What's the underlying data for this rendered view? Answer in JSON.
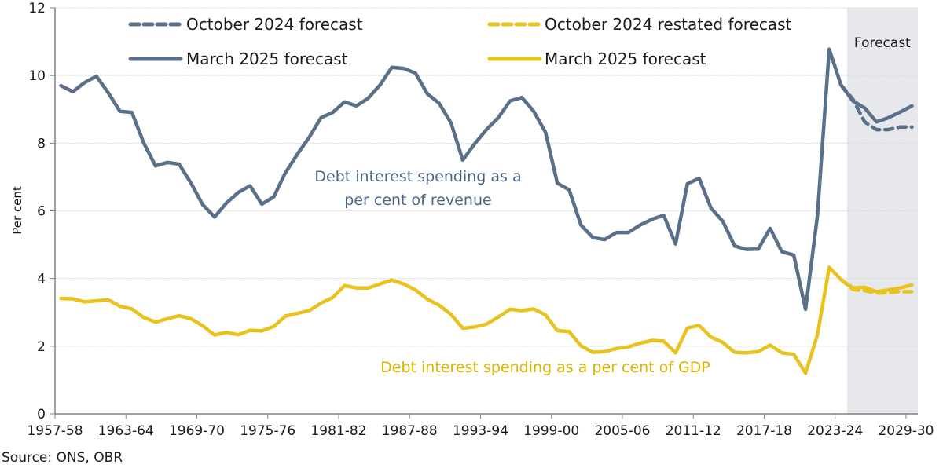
{
  "chart_data": {
    "type": "line",
    "title": "",
    "xlabel": "",
    "ylabel": "Per cent",
    "ylim": [
      0,
      12
    ],
    "yticks": [
      0,
      2,
      4,
      6,
      8,
      10,
      12
    ],
    "grid": true,
    "legend_position": "top",
    "source": "Source: ONS, OBR",
    "forecast_region": {
      "label": "Forecast",
      "start": "2024-25",
      "end": "2029-30"
    },
    "x_tick_labels": [
      "1957-58",
      "1963-64",
      "1969-70",
      "1975-76",
      "1981-82",
      "1987-88",
      "1993-94",
      "1999-00",
      "2005-06",
      "2011-12",
      "2017-18",
      "2023-24",
      "2029-30"
    ],
    "categories": [
      "1957-58",
      "1958-59",
      "1959-60",
      "1960-61",
      "1961-62",
      "1962-63",
      "1963-64",
      "1964-65",
      "1965-66",
      "1966-67",
      "1967-68",
      "1968-69",
      "1969-70",
      "1970-71",
      "1971-72",
      "1972-73",
      "1973-74",
      "1974-75",
      "1975-76",
      "1976-77",
      "1977-78",
      "1978-79",
      "1979-80",
      "1980-81",
      "1981-82",
      "1982-83",
      "1983-84",
      "1984-85",
      "1985-86",
      "1986-87",
      "1987-88",
      "1988-89",
      "1989-90",
      "1990-91",
      "1991-92",
      "1992-93",
      "1993-94",
      "1994-95",
      "1995-96",
      "1996-97",
      "1997-98",
      "1998-99",
      "1999-00",
      "2000-01",
      "2001-02",
      "2002-03",
      "2003-04",
      "2004-05",
      "2005-06",
      "2006-07",
      "2007-08",
      "2008-09",
      "2009-10",
      "2010-11",
      "2011-12",
      "2012-13",
      "2013-14",
      "2014-15",
      "2015-16",
      "2016-17",
      "2017-18",
      "2018-19",
      "2019-20",
      "2020-21",
      "2021-22",
      "2022-23",
      "2023-24",
      "2024-25",
      "2025-26",
      "2026-27",
      "2027-28",
      "2028-29",
      "2029-30"
    ],
    "annotations": [
      {
        "text_lines": [
          "Debt interest spending as a",
          "per cent of revenue"
        ],
        "color": "#4d6584"
      },
      {
        "text_lines": [
          "Debt interest spending as a per cent of GDP"
        ],
        "color": "#d9b400"
      }
    ],
    "series": [
      {
        "name": "October 2024 forecast",
        "measure": "revenue",
        "style": "dashed",
        "color": "#5a7089",
        "start_index": 66,
        "values": [
          9.72,
          9.3,
          8.63,
          8.4,
          8.4,
          8.48,
          8.48
        ]
      },
      {
        "name": "March 2025 forecast",
        "measure": "revenue",
        "style": "solid",
        "color": "#5a7089",
        "start_index": 0,
        "values": [
          9.7,
          9.52,
          9.79,
          9.98,
          9.49,
          8.94,
          8.91,
          8.01,
          7.33,
          7.43,
          7.38,
          6.82,
          6.18,
          5.82,
          6.23,
          6.54,
          6.74,
          6.2,
          6.41,
          7.13,
          7.67,
          8.17,
          8.75,
          8.91,
          9.22,
          9.1,
          9.33,
          9.72,
          10.24,
          10.21,
          10.07,
          9.46,
          9.18,
          8.6,
          7.5,
          7.98,
          8.4,
          8.75,
          9.25,
          9.35,
          8.94,
          8.32,
          6.82,
          6.62,
          5.58,
          5.21,
          5.15,
          5.36,
          5.36,
          5.58,
          5.75,
          5.87,
          5.02,
          6.8,
          6.96,
          6.08,
          5.69,
          4.96,
          4.86,
          4.87,
          5.48,
          4.79,
          4.69,
          3.09,
          5.85,
          10.78,
          9.72,
          9.25,
          9.04,
          8.63,
          8.75,
          8.92,
          9.1
        ]
      },
      {
        "name": "October 2024 restated forecast",
        "measure": "GDP",
        "style": "dashed",
        "color": "#e8c21e",
        "start_index": 66,
        "values": [
          3.97,
          3.68,
          3.64,
          3.57,
          3.58,
          3.61,
          3.61
        ]
      },
      {
        "name": "March 2025 forecast",
        "measure": "GDP",
        "style": "solid",
        "color": "#e8c21e",
        "start_index": 0,
        "values": [
          3.41,
          3.4,
          3.31,
          3.34,
          3.37,
          3.18,
          3.1,
          2.85,
          2.71,
          2.81,
          2.9,
          2.81,
          2.6,
          2.33,
          2.41,
          2.34,
          2.47,
          2.45,
          2.58,
          2.89,
          2.97,
          3.05,
          3.27,
          3.44,
          3.79,
          3.72,
          3.72,
          3.84,
          3.95,
          3.84,
          3.66,
          3.39,
          3.21,
          2.94,
          2.53,
          2.57,
          2.65,
          2.86,
          3.09,
          3.05,
          3.1,
          2.92,
          2.46,
          2.43,
          2.01,
          1.82,
          1.84,
          1.93,
          1.98,
          2.09,
          2.17,
          2.15,
          1.8,
          2.54,
          2.61,
          2.27,
          2.11,
          1.82,
          1.8,
          1.84,
          2.03,
          1.8,
          1.76,
          1.2,
          2.33,
          4.33,
          3.97,
          3.72,
          3.74,
          3.61,
          3.66,
          3.72,
          3.81
        ]
      }
    ]
  },
  "legend": [
    {
      "label": "October 2024 forecast",
      "style": "dashed",
      "color": "#5a7089"
    },
    {
      "label": "October 2024 restated forecast",
      "style": "dashed",
      "color": "#e8c21e"
    },
    {
      "label": "March 2025 forecast",
      "style": "solid",
      "color": "#5a7089"
    },
    {
      "label": "March 2025 forecast",
      "style": "solid",
      "color": "#e8c21e"
    }
  ],
  "colors": {
    "forecast_shade": "#e6e8ec",
    "grid": "#d9d9d9",
    "axis": "#808080"
  }
}
